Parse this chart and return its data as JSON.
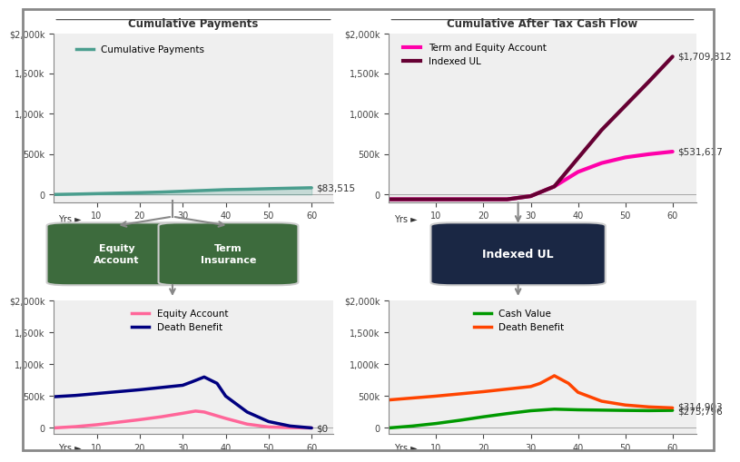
{
  "bg_color": "#ffffff",
  "border_color": "#aaaaaa",
  "top_left_title": "Cumulative Payments",
  "tl_legend": "Cumulative Payments",
  "tl_color": "#4a9e8e",
  "tl_x": [
    0,
    5,
    10,
    15,
    20,
    25,
    30,
    35,
    40,
    45,
    50,
    55,
    60
  ],
  "tl_y": [
    0,
    5000,
    11000,
    17000,
    23000,
    30000,
    40000,
    50000,
    60000,
    65000,
    72000,
    78000,
    83515
  ],
  "tl_end_label": "$83,515",
  "top_right_title": "Cumulative After Tax Cash Flow",
  "tr_legend1": "Term and Equity Account",
  "tr_color1": "#FF00AA",
  "tr_x1": [
    0,
    5,
    10,
    15,
    20,
    25,
    30,
    35,
    40,
    45,
    50,
    55,
    60
  ],
  "tr_y1": [
    -60000,
    -60000,
    -60000,
    -60000,
    -60000,
    -60000,
    -20000,
    100000,
    280000,
    390000,
    460000,
    500000,
    531617
  ],
  "tr_legend2": "Indexed UL",
  "tr_color2": "#660033",
  "tr_x2": [
    0,
    5,
    10,
    15,
    20,
    25,
    30,
    35,
    40,
    45,
    50,
    55,
    60
  ],
  "tr_y2": [
    -60000,
    -60000,
    -60000,
    -60000,
    -60000,
    -60000,
    -20000,
    100000,
    450000,
    800000,
    1100000,
    1400000,
    1709812
  ],
  "tr_end_label1": "$1,709,812",
  "tr_end_label2": "$531,617",
  "bot_left_legend1": "Equity Account",
  "bl_color1": "#FF6699",
  "bl_x1": [
    0,
    5,
    10,
    15,
    20,
    25,
    30,
    33,
    35,
    40,
    45,
    50,
    55,
    60
  ],
  "bl_y1": [
    0,
    20000,
    50000,
    90000,
    130000,
    175000,
    230000,
    265000,
    250000,
    150000,
    60000,
    15000,
    5000,
    0
  ],
  "bot_left_legend2": "Death Benefit",
  "bl_color2": "#000080",
  "bl_x2": [
    0,
    5,
    10,
    15,
    20,
    25,
    30,
    32,
    35,
    38,
    40,
    45,
    50,
    55,
    60
  ],
  "bl_y2": [
    490000,
    510000,
    540000,
    570000,
    600000,
    635000,
    670000,
    720000,
    800000,
    700000,
    500000,
    250000,
    100000,
    30000,
    0
  ],
  "bl_end_label": "$0",
  "bot_right_legend1": "Cash Value",
  "br_color1": "#009900",
  "br_x1": [
    0,
    5,
    10,
    15,
    20,
    25,
    30,
    35,
    40,
    45,
    50,
    55,
    60
  ],
  "br_y1": [
    0,
    30000,
    70000,
    120000,
    175000,
    225000,
    270000,
    295000,
    285000,
    280000,
    275000,
    272000,
    275796
  ],
  "bot_right_legend2": "Death Benefit",
  "br_color2": "#FF4400",
  "br_x2": [
    0,
    5,
    10,
    15,
    20,
    25,
    30,
    32,
    35,
    38,
    40,
    45,
    50,
    55,
    60
  ],
  "br_y2": [
    440000,
    470000,
    500000,
    535000,
    570000,
    610000,
    650000,
    700000,
    820000,
    700000,
    560000,
    420000,
    360000,
    330000,
    314903
  ],
  "br_end_label1": "$314,903",
  "br_end_label2": "$275,796",
  "box_left1_text": "Equity\nAccount",
  "box_left2_text": "Term\nInsurance",
  "box_right_text": "Indexed UL",
  "box_left_color": "#3d6b3d",
  "box_right_color": "#1a2744",
  "box_text_color": "#ffffff",
  "yticks": [
    0,
    500000,
    1000000,
    1500000,
    2000000
  ],
  "ytick_labels": [
    "0",
    "500k",
    "1,000k",
    "1,500k",
    "$2,000k"
  ],
  "xticks": [
    10,
    20,
    30,
    40,
    50,
    60
  ],
  "xmax": 65,
  "ymin": -100000,
  "ymax": 2000000
}
